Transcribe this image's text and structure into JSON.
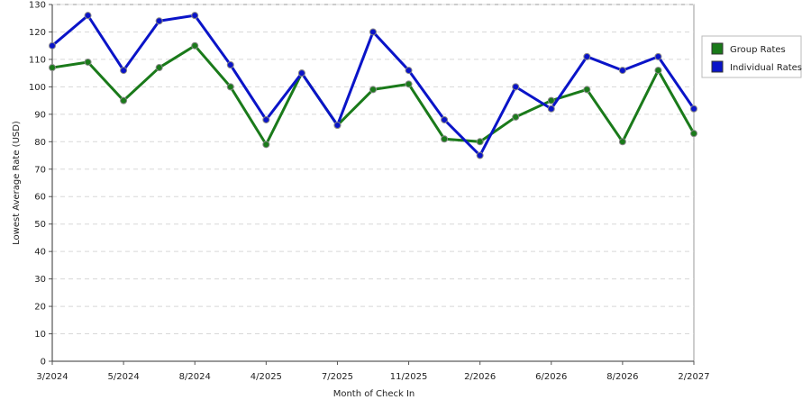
{
  "chart_data": {
    "type": "line",
    "x_label": "Month of Check In",
    "y_label": "Lowest Average Rate (USD)",
    "categories": [
      "3/2024",
      null,
      "5/2024",
      null,
      "8/2024",
      null,
      "4/2025",
      null,
      "7/2025",
      null,
      "11/2025",
      null,
      "2/2026",
      null,
      "6/2026",
      null,
      "8/2026",
      null,
      "2/2027"
    ],
    "series": [
      {
        "name": "Group Rates",
        "color": "#1a7a1a",
        "values": [
          107,
          109,
          95,
          107,
          115,
          100,
          79,
          105,
          86,
          99,
          101,
          81,
          80,
          89,
          95,
          99,
          80,
          106,
          83
        ]
      },
      {
        "name": "Individual Rates",
        "color": "#0a14c8",
        "values": [
          115,
          126,
          106,
          124,
          126,
          108,
          88,
          105,
          86,
          120,
          106,
          88,
          75,
          100,
          92,
          111,
          106,
          111,
          92
        ]
      }
    ],
    "ylim": [
      0,
      130
    ],
    "yticks": [
      0,
      10,
      20,
      30,
      40,
      50,
      60,
      70,
      80,
      90,
      100,
      110,
      120,
      130
    ],
    "grid": true,
    "legend": "right"
  }
}
